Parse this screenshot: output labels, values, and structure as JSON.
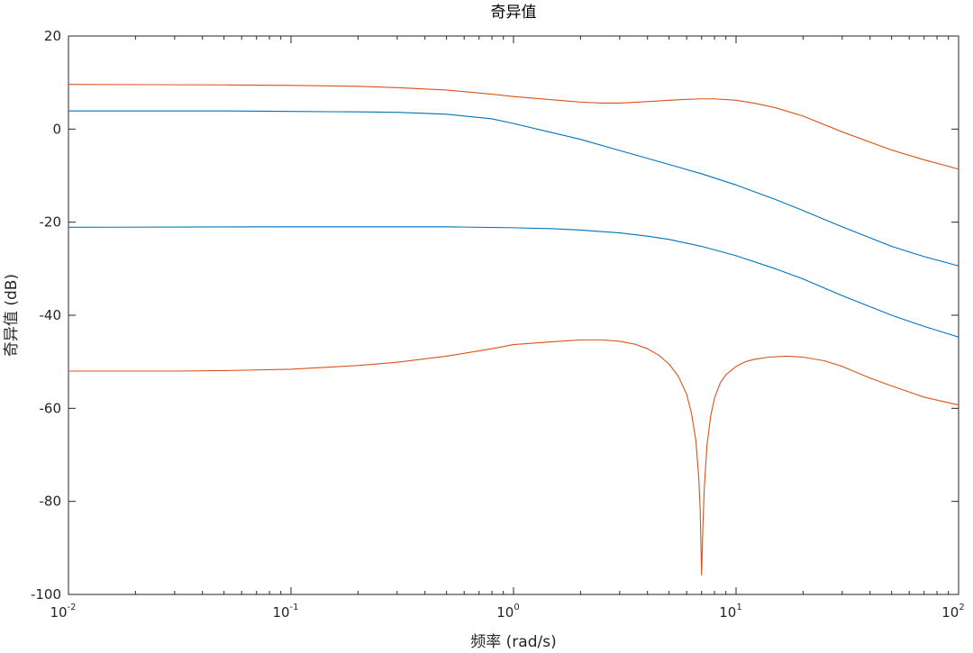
{
  "chart_data": {
    "type": "line",
    "title": "奇异值",
    "xlabel": "频率 (rad/s)",
    "ylabel": "奇异值 (dB)",
    "xscale": "log",
    "xlim": [
      0.01,
      100
    ],
    "ylim": [
      -100,
      20
    ],
    "grid": false,
    "x_ticks": [
      {
        "base": "10",
        "exp": "-2",
        "value": 0.01
      },
      {
        "base": "10",
        "exp": "-1",
        "value": 0.1
      },
      {
        "base": "10",
        "exp": "0",
        "value": 1
      },
      {
        "base": "10",
        "exp": "1",
        "value": 10
      },
      {
        "base": "10",
        "exp": "2",
        "value": 100
      }
    ],
    "y_ticks": [
      "20",
      "0",
      "-20",
      "-40",
      "-60",
      "-80",
      "-100"
    ],
    "colors": {
      "blue": "#0072BD",
      "orange": "#D95319",
      "axis": "#262626"
    },
    "series": [
      {
        "color": "orange",
        "x": [
          0.01,
          0.05,
          0.1,
          0.2,
          0.3,
          0.5,
          0.8,
          1.0,
          1.5,
          2.0,
          2.5,
          3.0,
          4.0,
          5.0,
          6.0,
          7.0,
          8.0,
          10.0,
          12.0,
          15.0,
          20.0,
          30.0,
          50.0,
          70.0,
          100.0
        ],
        "y": [
          9.6,
          9.5,
          9.4,
          9.2,
          8.9,
          8.4,
          7.5,
          7.0,
          6.3,
          5.8,
          5.6,
          5.6,
          5.9,
          6.2,
          6.4,
          6.5,
          6.5,
          6.2,
          5.6,
          4.6,
          2.8,
          -0.6,
          -4.5,
          -6.6,
          -8.6
        ]
      },
      {
        "color": "blue",
        "x": [
          0.01,
          0.05,
          0.1,
          0.2,
          0.3,
          0.5,
          0.8,
          1.0,
          1.5,
          2.0,
          3.0,
          5.0,
          7.0,
          10.0,
          15.0,
          20.0,
          30.0,
          50.0,
          70.0,
          100.0
        ],
        "y": [
          3.9,
          3.9,
          3.8,
          3.7,
          3.6,
          3.2,
          2.2,
          1.2,
          -0.8,
          -2.2,
          -4.6,
          -7.6,
          -9.6,
          -12.0,
          -15.1,
          -17.5,
          -21.0,
          -25.2,
          -27.4,
          -29.4
        ]
      },
      {
        "color": "blue",
        "x": [
          0.01,
          0.1,
          0.3,
          0.5,
          1.0,
          1.5,
          2.0,
          3.0,
          4.0,
          5.0,
          7.0,
          10.0,
          15.0,
          20.0,
          30.0,
          50.0,
          70.0,
          100.0
        ],
        "y": [
          -21.1,
          -21.0,
          -21.0,
          -21.0,
          -21.2,
          -21.4,
          -21.7,
          -22.3,
          -23.0,
          -23.7,
          -25.2,
          -27.2,
          -30.0,
          -32.2,
          -35.8,
          -40.0,
          -42.4,
          -44.7
        ]
      },
      {
        "color": "orange",
        "x": [
          0.01,
          0.03,
          0.05,
          0.1,
          0.2,
          0.3,
          0.5,
          0.8,
          1.0,
          1.5,
          2.0,
          2.5,
          3.0,
          3.5,
          4.0,
          4.5,
          5.0,
          5.5,
          6.0,
          6.3,
          6.6,
          6.8,
          6.9,
          7.0,
          7.1,
          7.2,
          7.4,
          7.7,
          8.0,
          8.5,
          9.0,
          10.0,
          11.0,
          12.0,
          14.0,
          17.0,
          20.0,
          25.0,
          30.0,
          40.0,
          50.0,
          70.0,
          100.0
        ],
        "y": [
          -52.0,
          -52.0,
          -51.9,
          -51.6,
          -50.8,
          -50.1,
          -48.8,
          -47.2,
          -46.3,
          -45.7,
          -45.3,
          -45.3,
          -45.6,
          -46.2,
          -47.2,
          -48.6,
          -50.5,
          -53.1,
          -57.0,
          -61.0,
          -67.0,
          -75.0,
          -82.0,
          -95.8,
          -85.0,
          -77.0,
          -68.0,
          -61.5,
          -57.8,
          -54.5,
          -52.8,
          -51.0,
          -50.0,
          -49.5,
          -49.0,
          -48.8,
          -49.0,
          -49.8,
          -51.0,
          -53.5,
          -55.2,
          -57.6,
          -59.3
        ]
      }
    ]
  }
}
